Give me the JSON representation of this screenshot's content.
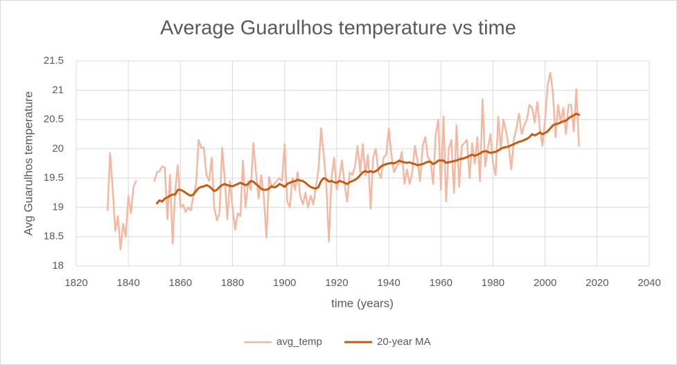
{
  "chart_data": {
    "type": "line",
    "title": "Average Guarulhos temperature vs time",
    "x_label": "time (years)",
    "y_label": "Avg Guarulhos temperature",
    "xlim": [
      1820,
      2040
    ],
    "xticks": [
      1820,
      1840,
      1860,
      1880,
      1900,
      1920,
      1940,
      1960,
      1980,
      2000,
      2020,
      2040
    ],
    "ylim": [
      18,
      21.5
    ],
    "yticks": [
      18,
      18.5,
      19,
      19.5,
      20,
      20.5,
      21,
      21.5
    ],
    "grid": true,
    "legend": "bottom",
    "x": [
      1832,
      1833,
      1834,
      1835,
      1836,
      1837,
      1838,
      1839,
      1840,
      1841,
      1842,
      1843,
      1844,
      1845,
      1846,
      1847,
      1848,
      1849,
      1850,
      1851,
      1852,
      1853,
      1854,
      1855,
      1856,
      1857,
      1858,
      1859,
      1860,
      1861,
      1862,
      1863,
      1864,
      1865,
      1866,
      1867,
      1868,
      1869,
      1870,
      1871,
      1872,
      1873,
      1874,
      1875,
      1876,
      1877,
      1878,
      1879,
      1880,
      1881,
      1882,
      1883,
      1884,
      1885,
      1886,
      1887,
      1888,
      1889,
      1890,
      1891,
      1892,
      1893,
      1894,
      1895,
      1896,
      1897,
      1898,
      1899,
      1900,
      1901,
      1902,
      1903,
      1904,
      1905,
      1906,
      1907,
      1908,
      1909,
      1910,
      1911,
      1912,
      1913,
      1914,
      1915,
      1916,
      1917,
      1918,
      1919,
      1920,
      1921,
      1922,
      1923,
      1924,
      1925,
      1926,
      1927,
      1928,
      1929,
      1930,
      1931,
      1932,
      1933,
      1934,
      1935,
      1936,
      1937,
      1938,
      1939,
      1940,
      1941,
      1942,
      1943,
      1944,
      1945,
      1946,
      1947,
      1948,
      1949,
      1950,
      1951,
      1952,
      1953,
      1954,
      1955,
      1956,
      1957,
      1958,
      1959,
      1960,
      1961,
      1962,
      1963,
      1964,
      1965,
      1966,
      1967,
      1968,
      1969,
      1970,
      1971,
      1972,
      1973,
      1974,
      1975,
      1976,
      1977,
      1978,
      1979,
      1980,
      1981,
      1982,
      1983,
      1984,
      1985,
      1986,
      1987,
      1988,
      1989,
      1990,
      1991,
      1992,
      1993,
      1994,
      1995,
      1996,
      1997,
      1998,
      1999,
      2000,
      2001,
      2002,
      2003,
      2004,
      2005,
      2006,
      2007,
      2008,
      2009,
      2010,
      2011,
      2012,
      2013
    ],
    "series": [
      {
        "name": "avg_temp",
        "color": "#f4b8a2",
        "width": 2.5,
        "values": [
          18.95,
          19.93,
          19.3,
          18.6,
          18.85,
          18.28,
          18.72,
          18.5,
          19.2,
          18.9,
          19.35,
          19.45,
          null,
          null,
          null,
          null,
          null,
          null,
          19.45,
          19.6,
          19.62,
          19.7,
          19.68,
          18.8,
          19.55,
          18.38,
          19.3,
          19.72,
          19.0,
          19.05,
          18.92,
          19.0,
          18.95,
          19.2,
          19.4,
          20.15,
          20.02,
          20.02,
          19.55,
          19.45,
          19.85,
          19.0,
          18.78,
          18.9,
          20.02,
          19.5,
          18.8,
          19.45,
          19.0,
          18.62,
          18.9,
          18.85,
          19.8,
          19.0,
          19.45,
          19.3,
          20.1,
          19.6,
          19.15,
          19.55,
          19.2,
          18.48,
          19.52,
          19.35,
          19.4,
          19.45,
          19.5,
          19.45,
          20.08,
          19.1,
          19.0,
          19.5,
          19.3,
          19.6,
          19.2,
          19.05,
          19.25,
          19.0,
          19.2,
          19.05,
          19.35,
          19.65,
          20.35,
          19.9,
          19.4,
          18.42,
          19.5,
          19.85,
          19.3,
          19.5,
          19.8,
          19.4,
          19.1,
          19.6,
          19.55,
          19.7,
          20.05,
          19.6,
          20.08,
          19.55,
          19.9,
          18.98,
          19.85,
          20.0,
          19.6,
          19.5,
          19.85,
          19.9,
          20.35,
          19.9,
          19.6,
          19.7,
          19.75,
          19.95,
          19.4,
          19.65,
          19.4,
          19.6,
          20.05,
          19.8,
          19.45,
          20.05,
          20.2,
          19.85,
          19.8,
          19.4,
          20.25,
          20.5,
          19.3,
          20.55,
          19.1,
          20.0,
          20.15,
          19.25,
          20.4,
          19.35,
          20.05,
          20.1,
          20.15,
          19.5,
          20.1,
          19.75,
          20.2,
          19.45,
          20.85,
          19.7,
          20.0,
          20.25,
          19.75,
          19.55,
          20.55,
          20.0,
          20.5,
          20.3,
          20.05,
          19.65,
          20.15,
          20.35,
          20.6,
          20.25,
          20.4,
          20.5,
          20.75,
          20.7,
          20.45,
          20.8,
          20.35,
          20.05,
          20.5,
          21.1,
          21.3,
          20.95,
          20.2,
          20.75,
          20.45,
          20.7,
          20.25,
          20.75,
          20.75,
          20.3,
          21.02,
          20.05
        ]
      },
      {
        "name": "20-year MA",
        "color": "#c55a11",
        "width": 3,
        "values": [
          null,
          null,
          null,
          null,
          null,
          null,
          null,
          null,
          null,
          null,
          null,
          null,
          null,
          null,
          null,
          null,
          null,
          null,
          null,
          19.07,
          19.12,
          19.1,
          19.15,
          19.17,
          19.2,
          19.22,
          19.22,
          19.3,
          19.3,
          19.28,
          19.25,
          19.22,
          19.2,
          19.22,
          19.28,
          19.33,
          19.35,
          19.36,
          19.38,
          19.36,
          19.32,
          19.28,
          19.3,
          19.35,
          19.38,
          19.4,
          19.38,
          19.37,
          19.36,
          19.38,
          19.4,
          19.42,
          19.4,
          19.38,
          19.4,
          19.45,
          19.44,
          19.4,
          19.36,
          19.32,
          19.3,
          19.3,
          19.32,
          19.36,
          19.34,
          19.36,
          19.4,
          19.38,
          19.35,
          19.4,
          19.42,
          19.44,
          19.45,
          19.47,
          19.46,
          19.45,
          19.42,
          19.38,
          19.35,
          19.33,
          19.32,
          19.35,
          19.45,
          19.5,
          19.48,
          19.44,
          19.45,
          19.43,
          19.42,
          19.45,
          19.44,
          19.42,
          19.4,
          19.43,
          19.45,
          19.47,
          19.5,
          19.55,
          19.6,
          19.62,
          19.6,
          19.62,
          19.6,
          19.62,
          19.65,
          19.7,
          19.72,
          19.74,
          19.75,
          19.76,
          19.75,
          19.77,
          19.8,
          19.78,
          19.77,
          19.76,
          19.77,
          19.75,
          19.74,
          19.72,
          19.73,
          19.74,
          19.76,
          19.78,
          19.78,
          19.74,
          19.76,
          19.8,
          19.8,
          19.8,
          19.76,
          19.77,
          19.78,
          19.79,
          19.8,
          19.82,
          19.83,
          19.84,
          19.86,
          19.88,
          19.9,
          19.88,
          19.9,
          19.92,
          19.95,
          19.96,
          19.95,
          19.93,
          19.94,
          19.95,
          19.97,
          20.0,
          20.02,
          20.03,
          20.04,
          20.06,
          20.08,
          20.1,
          20.12,
          20.13,
          20.15,
          20.17,
          20.2,
          20.25,
          20.23,
          20.25,
          20.28,
          20.25,
          20.27,
          20.3,
          20.35,
          20.4,
          20.42,
          20.43,
          20.45,
          20.47,
          20.48,
          20.52,
          20.55,
          20.57,
          20.6,
          20.58
        ]
      }
    ]
  }
}
